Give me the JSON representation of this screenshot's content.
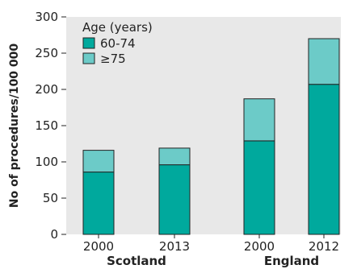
{
  "chart_data": {
    "type": "bar",
    "stacked": true,
    "categories": [
      "2000",
      "2013",
      "2000",
      "2012"
    ],
    "groups": [
      {
        "label": "Scotland",
        "category_indices": [
          0,
          1
        ]
      },
      {
        "label": "England",
        "category_indices": [
          2,
          3
        ]
      }
    ],
    "series": [
      {
        "name": "60-74",
        "values": [
          86,
          96,
          129,
          207
        ],
        "color": "#00a99d"
      },
      {
        "name": "≥75",
        "values": [
          30,
          23,
          58,
          63
        ],
        "color": "#6ccbc8"
      }
    ],
    "ylabel": "No of procedures/100 000",
    "yticks": [
      0,
      50,
      100,
      150,
      200,
      250,
      300
    ],
    "ylim": [
      0,
      300
    ],
    "legend": {
      "title": "Age (years)",
      "placement": "top-left"
    },
    "grid": false,
    "background": "#e8e8e8"
  }
}
